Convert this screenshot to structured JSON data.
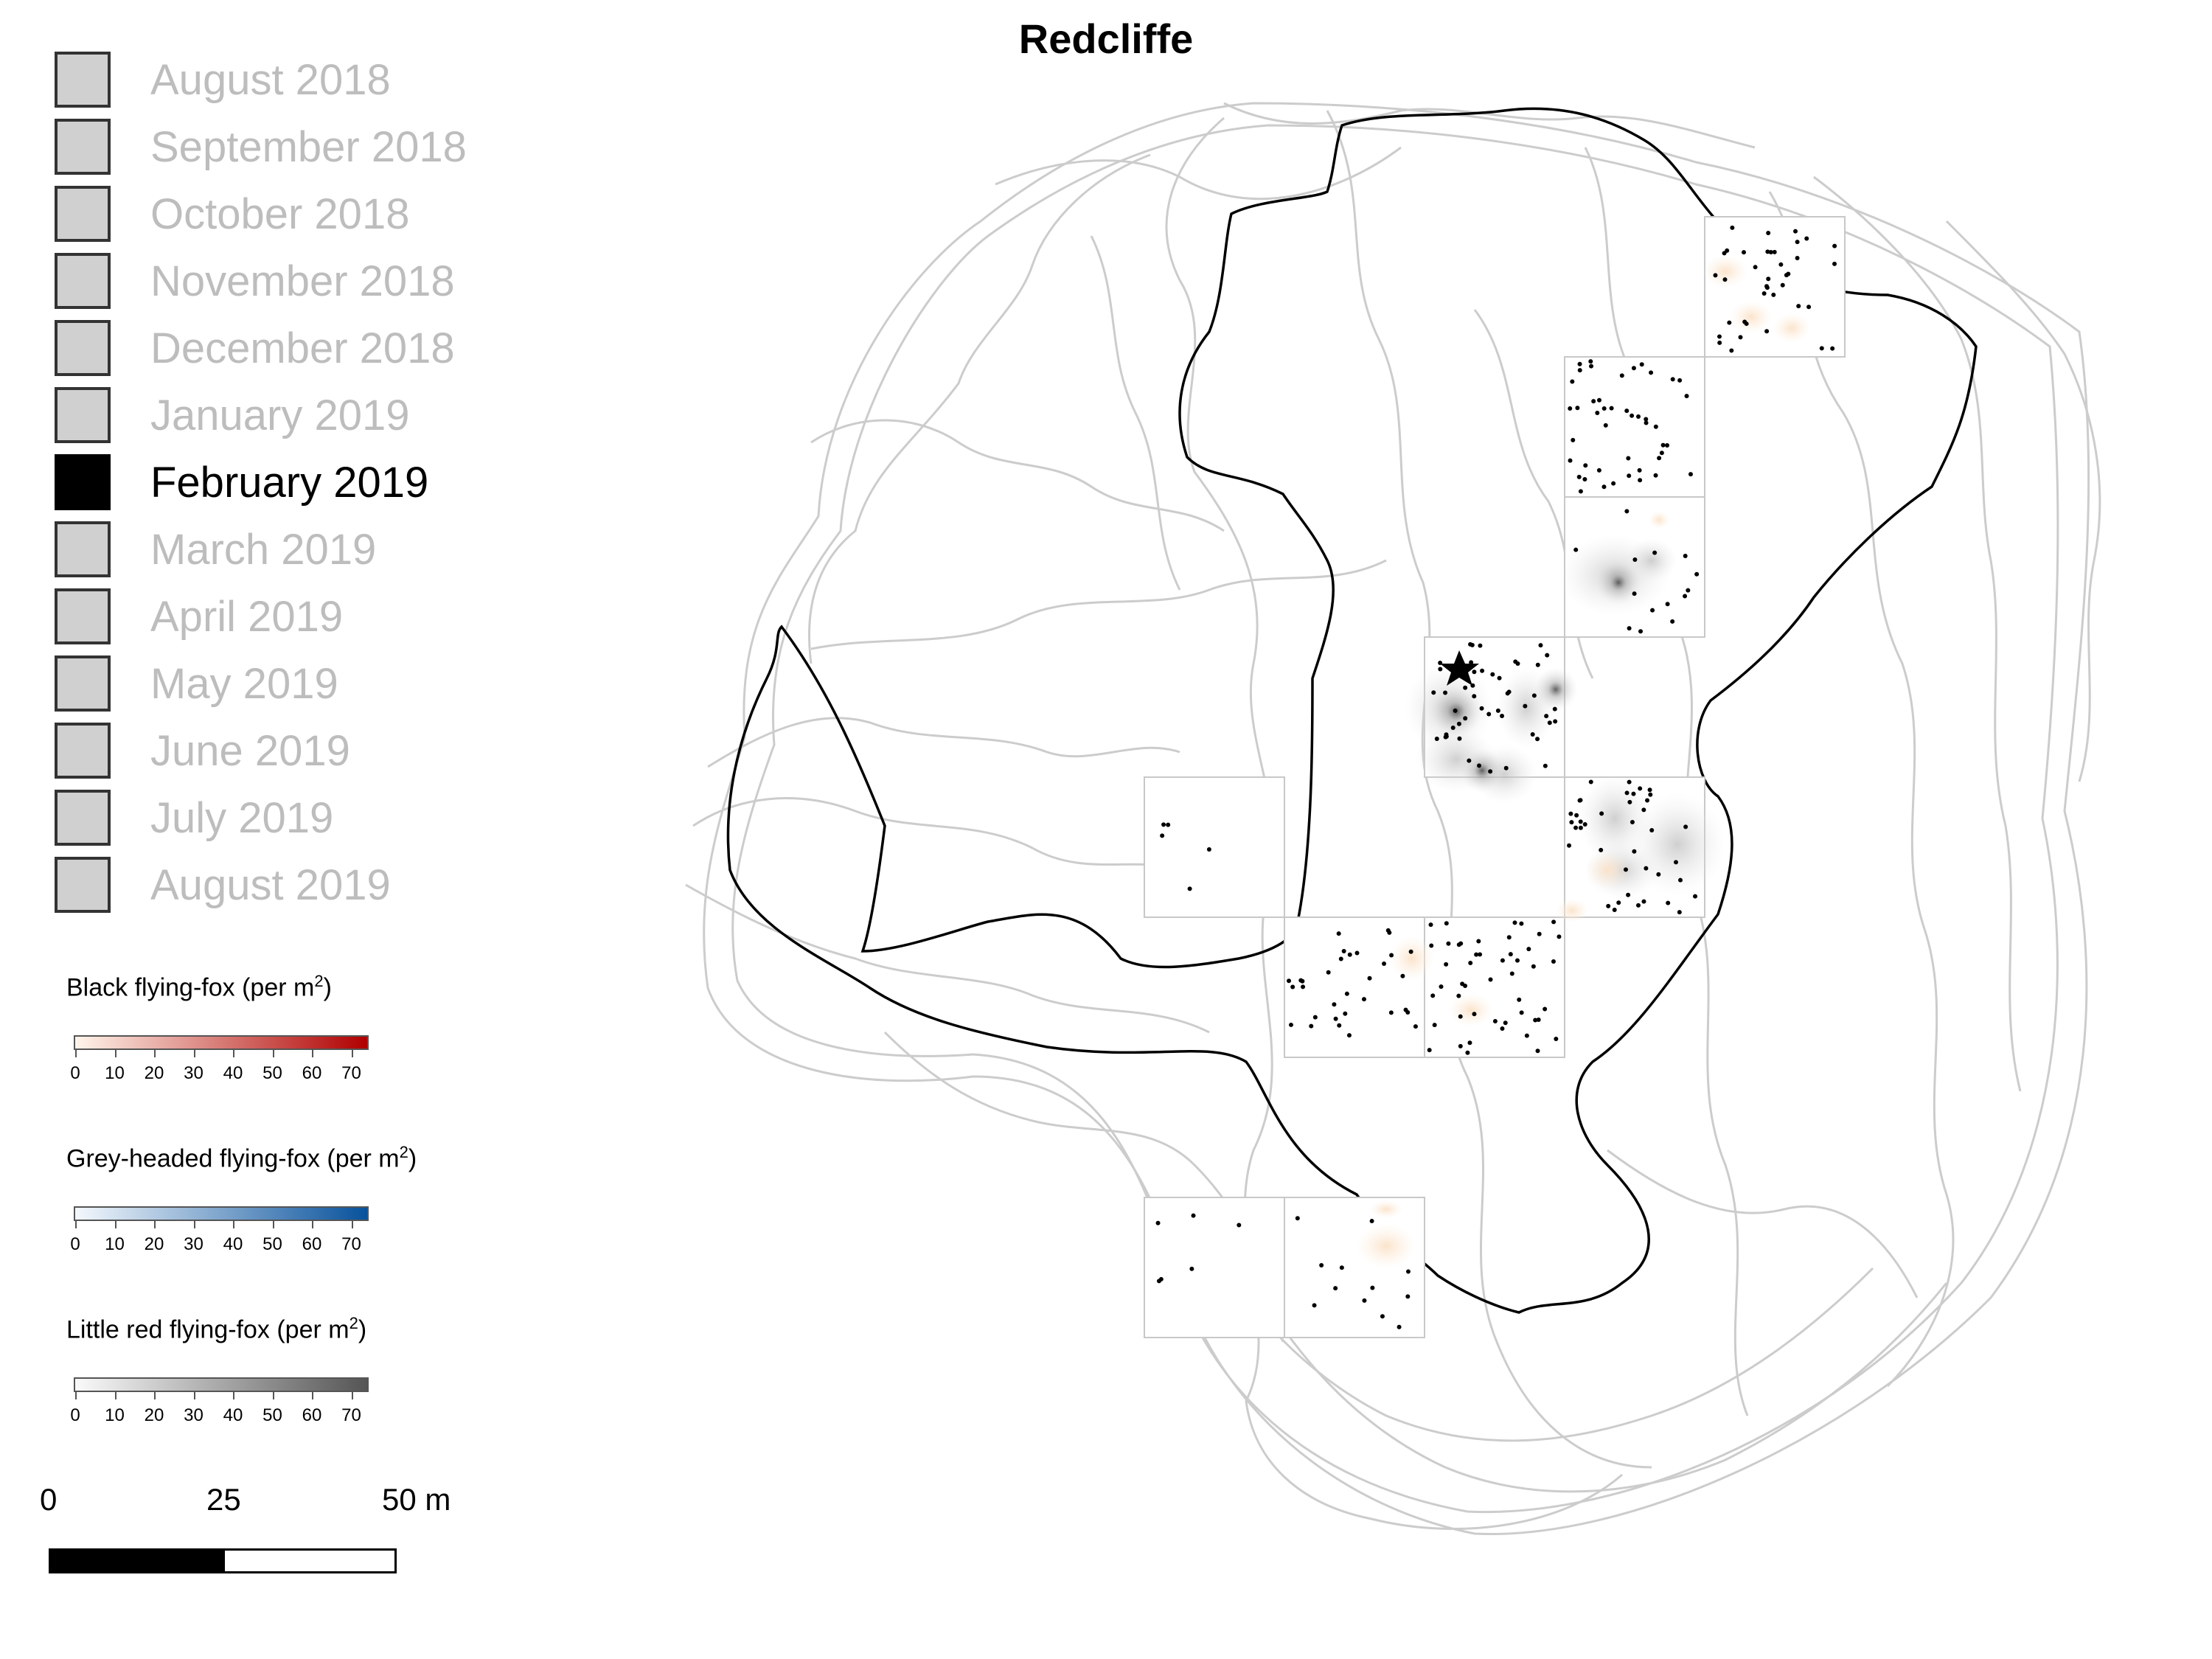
{
  "title": "Redcliffe",
  "months": [
    {
      "label": "August 2018",
      "active": false
    },
    {
      "label": "September 2018",
      "active": false
    },
    {
      "label": "October 2018",
      "active": false
    },
    {
      "label": "November 2018",
      "active": false
    },
    {
      "label": "December 2018",
      "active": false
    },
    {
      "label": "January 2019",
      "active": false
    },
    {
      "label": "February 2019",
      "active": true
    },
    {
      "label": "March 2019",
      "active": false
    },
    {
      "label": "April 2019",
      "active": false
    },
    {
      "label": "May 2019",
      "active": false
    },
    {
      "label": "June 2019",
      "active": false
    },
    {
      "label": "July 2019",
      "active": false
    },
    {
      "label": "August 2019",
      "active": false
    }
  ],
  "legends": [
    {
      "title": "Black flying-fox (per m",
      "superscript": "2",
      "title_end": ")",
      "color_low": "#fff5eb",
      "color_high": "#b00000",
      "ticks": [
        "0",
        "10",
        "20",
        "30",
        "40",
        "50",
        "60",
        "70"
      ]
    },
    {
      "title": "Grey-headed flying-fox (per m",
      "superscript": "2",
      "title_end": ")",
      "color_low": "#f4f8fd",
      "color_high": "#08529c",
      "ticks": [
        "0",
        "10",
        "20",
        "30",
        "40",
        "50",
        "60",
        "70"
      ]
    },
    {
      "title": "Little red flying-fox (per m",
      "superscript": "2",
      "title_end": ")",
      "color_low": "#fafafa",
      "color_high": "#555555",
      "ticks": [
        "0",
        "10",
        "20",
        "30",
        "40",
        "50",
        "60",
        "70"
      ]
    }
  ],
  "scale_bar": {
    "labels": [
      "0",
      "25",
      "50 m"
    ]
  },
  "colors": {
    "tracks": "#cccccc",
    "boundary": "#000000",
    "grid": "#c8c8c8",
    "roost_dot": "#000000"
  },
  "icons": {
    "roost_marker": "star-icon"
  }
}
